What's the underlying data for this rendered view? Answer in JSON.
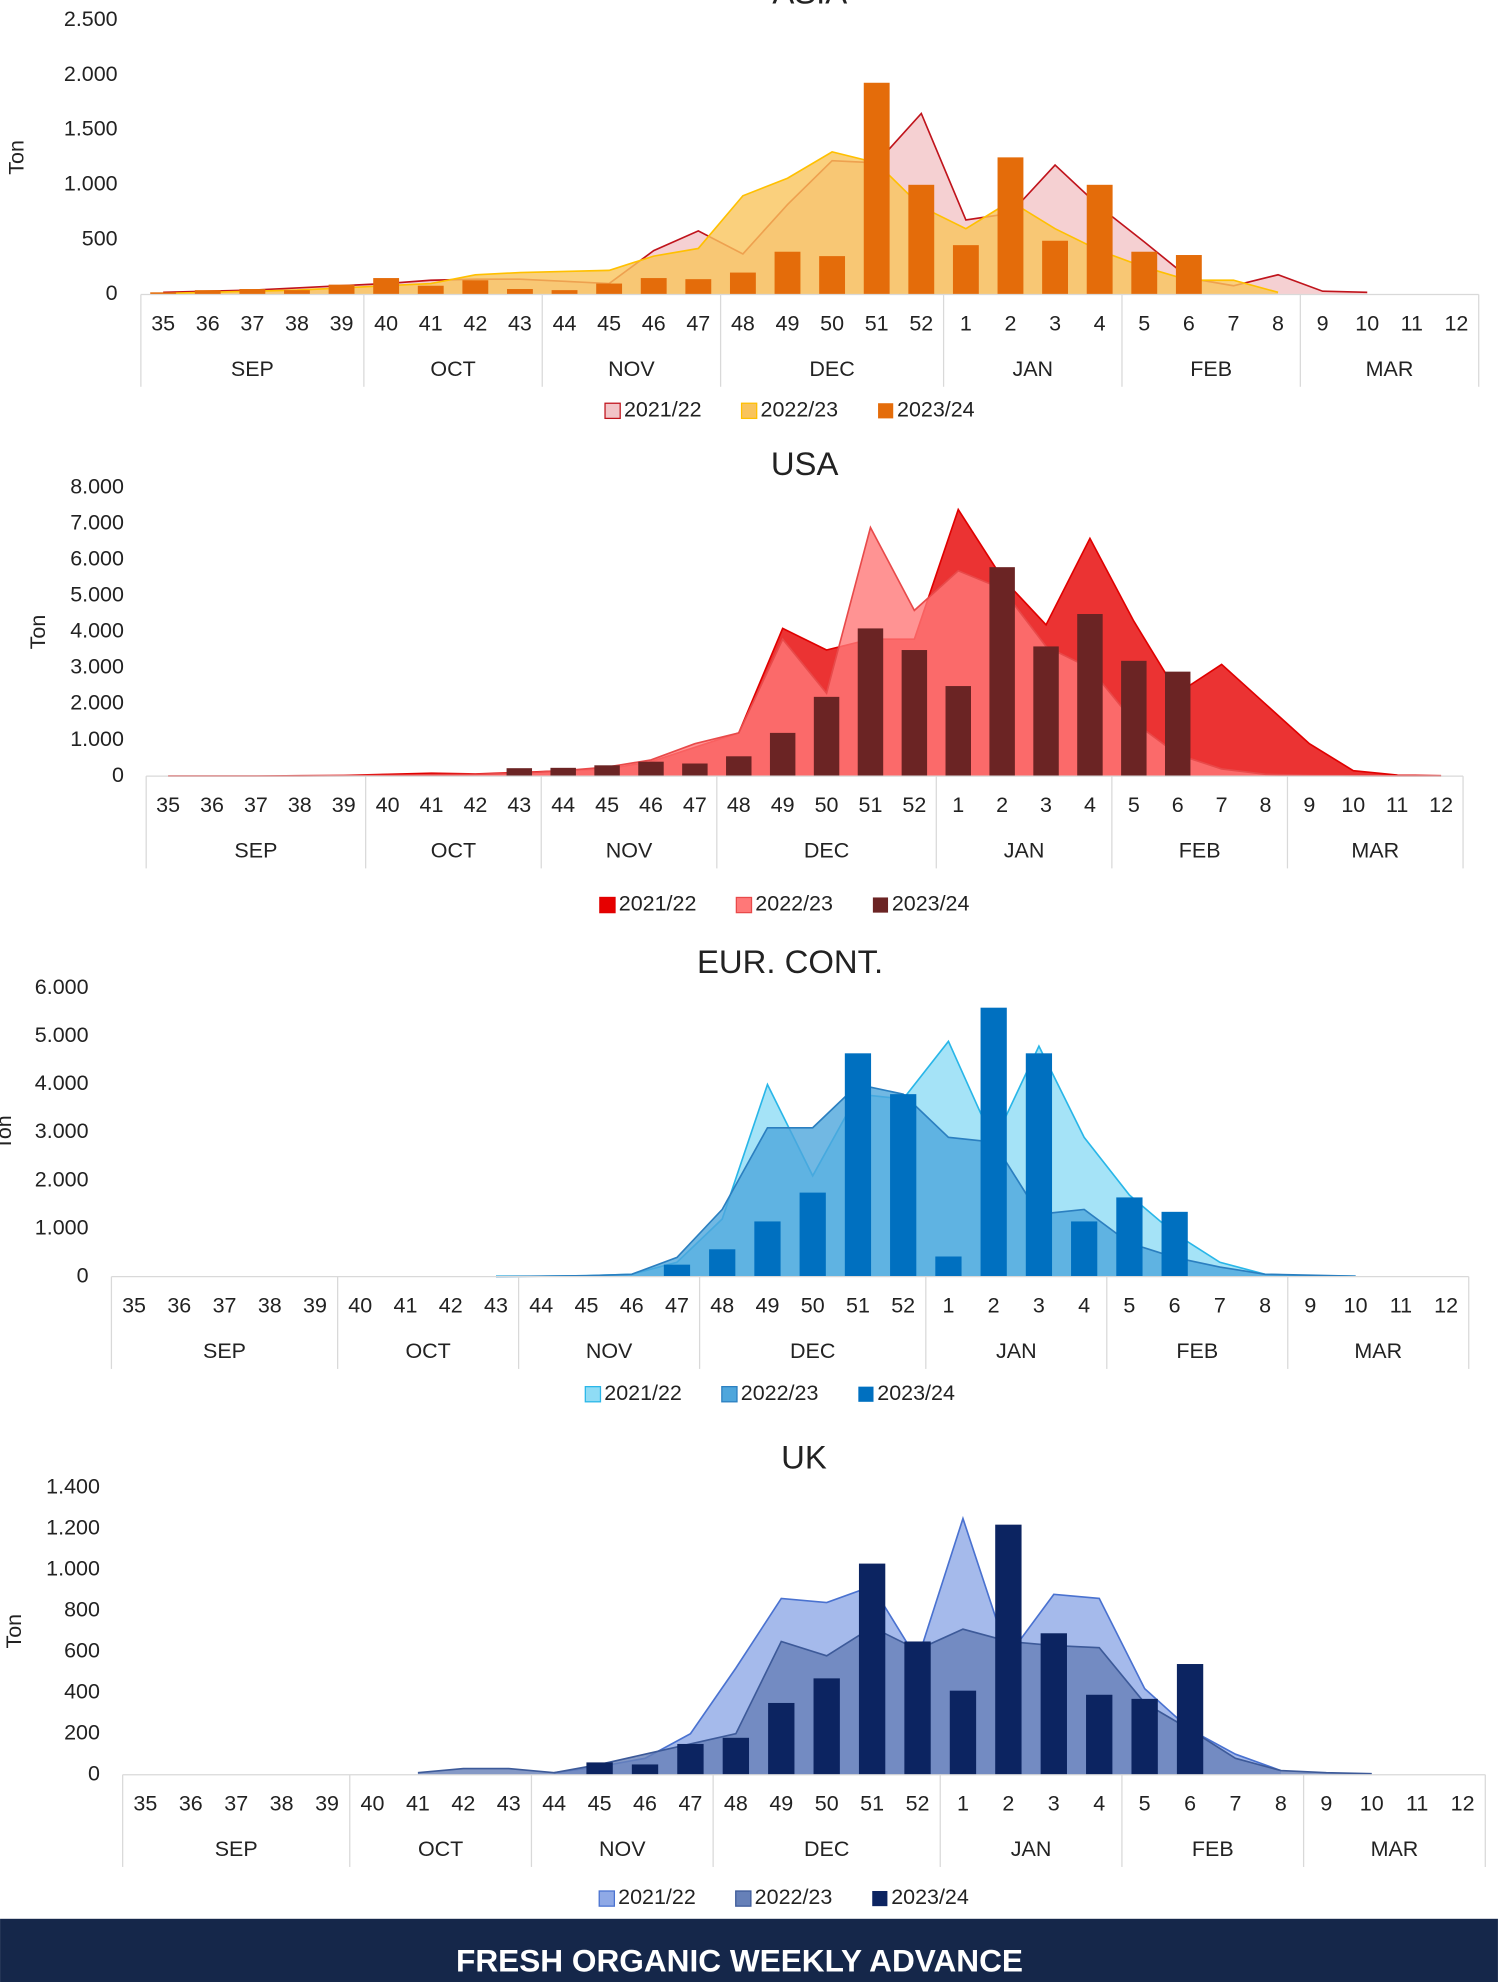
{
  "chart_data": [
    {
      "type": "combo",
      "title": "ASIA",
      "y_label": "Ton",
      "groups": [
        {
          "label": "SEP",
          "categories": [
            "35",
            "36",
            "37",
            "38",
            "39"
          ]
        },
        {
          "label": "OCT",
          "categories": [
            "40",
            "41",
            "42",
            "43"
          ]
        },
        {
          "label": "NOV",
          "categories": [
            "44",
            "45",
            "46",
            "47"
          ]
        },
        {
          "label": "DEC",
          "categories": [
            "48",
            "49",
            "50",
            "51",
            "52"
          ]
        },
        {
          "label": "JAN",
          "categories": [
            "1",
            "2",
            "3",
            "4"
          ]
        },
        {
          "label": "FEB",
          "categories": [
            "5",
            "6",
            "7",
            "8"
          ]
        },
        {
          "label": "MAR",
          "categories": [
            "9",
            "10",
            "11",
            "12"
          ]
        }
      ],
      "ylim": [
        0,
        2500
      ],
      "yticks": [
        0,
        500,
        {
          "value": 1000,
          "label": "1.000"
        },
        {
          "value": 1500,
          "label": "1.500"
        },
        {
          "value": 2000,
          "label": "2.000"
        },
        {
          "value": 2500,
          "label": "2.500"
        }
      ],
      "series": [
        {
          "name": "2021/22",
          "type": "area",
          "color": "#f2c4c7",
          "line_color": "#c0141c",
          "values": [
            20,
            30,
            40,
            60,
            80,
            100,
            130,
            140,
            140,
            120,
            100,
            400,
            580,
            370,
            820,
            1220,
            1200,
            1650,
            680,
            740,
            1180,
            800,
            480,
            150,
            80,
            180,
            30,
            20,
            null,
            null
          ]
        },
        {
          "name": "2022/23",
          "type": "area",
          "color": "#f9c45c",
          "line_color": "#ffc000",
          "values": [
            10,
            20,
            30,
            40,
            60,
            80,
            100,
            180,
            200,
            210,
            220,
            350,
            420,
            900,
            1060,
            1300,
            1200,
            800,
            600,
            850,
            600,
            400,
            250,
            130,
            130,
            20,
            null,
            null,
            null,
            null
          ]
        },
        {
          "name": "2023/24",
          "type": "bar",
          "color": "#e46c0a",
          "values": [
            20,
            40,
            50,
            40,
            90,
            150,
            80,
            130,
            50,
            40,
            100,
            150,
            140,
            200,
            390,
            350,
            1930,
            1000,
            450,
            1250,
            490,
            1000,
            390,
            360,
            null,
            null,
            null,
            null,
            null,
            null
          ]
        }
      ]
    },
    {
      "type": "combo",
      "title": "USA",
      "y_label": "Ton",
      "groups": [
        {
          "label": "SEP",
          "categories": [
            "35",
            "36",
            "37",
            "38",
            "39"
          ]
        },
        {
          "label": "OCT",
          "categories": [
            "40",
            "41",
            "42",
            "43"
          ]
        },
        {
          "label": "NOV",
          "categories": [
            "44",
            "45",
            "46",
            "47"
          ]
        },
        {
          "label": "DEC",
          "categories": [
            "48",
            "49",
            "50",
            "51",
            "52"
          ]
        },
        {
          "label": "JAN",
          "categories": [
            "1",
            "2",
            "3",
            "4"
          ]
        },
        {
          "label": "FEB",
          "categories": [
            "5",
            "6",
            "7",
            "8"
          ]
        },
        {
          "label": "MAR",
          "categories": [
            "9",
            "10",
            "11",
            "12"
          ]
        }
      ],
      "ylim": [
        0,
        8000
      ],
      "yticks": [
        0,
        {
          "value": 1000,
          "label": "1.000"
        },
        {
          "value": 2000,
          "label": "2.000"
        },
        {
          "value": 3000,
          "label": "3.000"
        },
        {
          "value": 4000,
          "label": "4.000"
        },
        {
          "value": 5000,
          "label": "5.000"
        },
        {
          "value": 6000,
          "label": "6.000"
        },
        {
          "value": 7000,
          "label": "7.000"
        },
        {
          "value": 8000,
          "label": "8.000"
        }
      ],
      "series": [
        {
          "name": "2021/22",
          "type": "area",
          "color": "#e60000",
          "line_color": "#e00000",
          "values": [
            0,
            0,
            0,
            10,
            20,
            50,
            80,
            60,
            100,
            150,
            200,
            400,
            800,
            1200,
            4100,
            3500,
            3800,
            3800,
            7400,
            5500,
            4200,
            6600,
            4300,
            2300,
            3100,
            2000,
            900,
            150,
            30,
            10
          ]
        },
        {
          "name": "2022/23",
          "type": "area",
          "color": "#ff7878",
          "line_color": "#e84a4a",
          "values": [
            0,
            0,
            0,
            0,
            10,
            20,
            40,
            50,
            80,
            150,
            250,
            450,
            900,
            1200,
            3800,
            2300,
            6900,
            4600,
            5700,
            5200,
            3600,
            3000,
            1500,
            600,
            200,
            50,
            20,
            10,
            0,
            0
          ]
        },
        {
          "name": "2023/24",
          "type": "bar",
          "color": "#6b2424",
          "values": [
            null,
            null,
            null,
            null,
            null,
            null,
            null,
            null,
            220,
            230,
            300,
            400,
            350,
            550,
            1200,
            2200,
            4100,
            3500,
            2500,
            5800,
            3600,
            4500,
            3200,
            2900,
            null,
            null,
            null,
            null,
            null,
            null
          ]
        }
      ]
    },
    {
      "type": "combo",
      "title": "EUR. CONT.",
      "y_label": "Ton",
      "groups": [
        {
          "label": "SEP",
          "categories": [
            "35",
            "36",
            "37",
            "38",
            "39"
          ]
        },
        {
          "label": "OCT",
          "categories": [
            "40",
            "41",
            "42",
            "43"
          ]
        },
        {
          "label": "NOV",
          "categories": [
            "44",
            "45",
            "46",
            "47"
          ]
        },
        {
          "label": "DEC",
          "categories": [
            "48",
            "49",
            "50",
            "51",
            "52"
          ]
        },
        {
          "label": "JAN",
          "categories": [
            "1",
            "2",
            "3",
            "4"
          ]
        },
        {
          "label": "FEB",
          "categories": [
            "5",
            "6",
            "7",
            "8"
          ]
        },
        {
          "label": "MAR",
          "categories": [
            "9",
            "10",
            "11",
            "12"
          ]
        }
      ],
      "ylim": [
        0,
        6000
      ],
      "yticks": [
        0,
        {
          "value": 1000,
          "label": "1.000"
        },
        {
          "value": 2000,
          "label": "2.000"
        },
        {
          "value": 3000,
          "label": "3.000"
        },
        {
          "value": 4000,
          "label": "4.000"
        },
        {
          "value": 5000,
          "label": "5.000"
        },
        {
          "value": 6000,
          "label": "6.000"
        }
      ],
      "series": [
        {
          "name": "2021/22",
          "type": "area",
          "color": "#8fdcf5",
          "line_color": "#29b6e8",
          "values": [
            null,
            null,
            null,
            null,
            null,
            null,
            null,
            null,
            10,
            10,
            20,
            50,
            300,
            1200,
            4000,
            2100,
            3800,
            3700,
            4900,
            2800,
            4800,
            2900,
            1700,
            900,
            300,
            50,
            20,
            10,
            null,
            null
          ]
        },
        {
          "name": "2022/23",
          "type": "area",
          "color": "#4ea6dc",
          "line_color": "#2b7fc0",
          "values": [
            null,
            null,
            null,
            null,
            null,
            null,
            null,
            null,
            0,
            10,
            20,
            50,
            400,
            1400,
            3100,
            3100,
            4000,
            3800,
            2900,
            2800,
            1300,
            1400,
            700,
            400,
            200,
            50,
            30,
            10,
            null,
            null
          ]
        },
        {
          "name": "2023/24",
          "type": "bar",
          "color": "#0070c0",
          "values": [
            null,
            null,
            null,
            null,
            null,
            null,
            null,
            null,
            null,
            null,
            null,
            null,
            250,
            570,
            1150,
            1750,
            4650,
            3800,
            420,
            5600,
            4650,
            1150,
            1650,
            1350,
            null,
            null,
            null,
            null,
            null,
            null
          ]
        }
      ]
    },
    {
      "type": "combo",
      "title": "UK",
      "y_label": "Ton",
      "groups": [
        {
          "label": "SEP",
          "categories": [
            "35",
            "36",
            "37",
            "38",
            "39"
          ]
        },
        {
          "label": "OCT",
          "categories": [
            "40",
            "41",
            "42",
            "43"
          ]
        },
        {
          "label": "NOV",
          "categories": [
            "44",
            "45",
            "46",
            "47"
          ]
        },
        {
          "label": "DEC",
          "categories": [
            "48",
            "49",
            "50",
            "51",
            "52"
          ]
        },
        {
          "label": "JAN",
          "categories": [
            "1",
            "2",
            "3",
            "4"
          ]
        },
        {
          "label": "FEB",
          "categories": [
            "5",
            "6",
            "7",
            "8"
          ]
        },
        {
          "label": "MAR",
          "categories": [
            "9",
            "10",
            "11",
            "12"
          ]
        }
      ],
      "ylim": [
        0,
        1400
      ],
      "yticks": [
        0,
        200,
        400,
        600,
        800,
        {
          "value": 1000,
          "label": "1.000"
        },
        {
          "value": 1200,
          "label": "1.200"
        },
        {
          "value": 1400,
          "label": "1.400"
        }
      ],
      "series": [
        {
          "name": "2021/22",
          "type": "area",
          "color": "#8fa9e6",
          "line_color": "#4a72d0",
          "values": [
            null,
            null,
            null,
            null,
            null,
            null,
            null,
            null,
            null,
            10,
            40,
            80,
            200,
            520,
            860,
            840,
            920,
            560,
            1250,
            580,
            880,
            860,
            420,
            220,
            100,
            20,
            null,
            null,
            null,
            null
          ]
        },
        {
          "name": "2022/23",
          "type": "area",
          "color": "#6680b8",
          "line_color": "#3d5a99",
          "values": [
            null,
            null,
            null,
            null,
            null,
            null,
            10,
            30,
            30,
            10,
            50,
            100,
            150,
            200,
            650,
            580,
            720,
            610,
            710,
            650,
            630,
            620,
            350,
            220,
            80,
            20,
            10,
            5,
            null,
            null
          ]
        },
        {
          "name": "2023/24",
          "type": "bar",
          "color": "#0c2461",
          "values": [
            null,
            null,
            null,
            null,
            null,
            null,
            null,
            null,
            null,
            null,
            60,
            50,
            150,
            180,
            350,
            470,
            1030,
            650,
            410,
            1220,
            690,
            390,
            370,
            540,
            null,
            null,
            null,
            null,
            null,
            null
          ]
        }
      ]
    }
  ],
  "footer": "FRESH ORGANIC WEEKLY ADVANCE"
}
